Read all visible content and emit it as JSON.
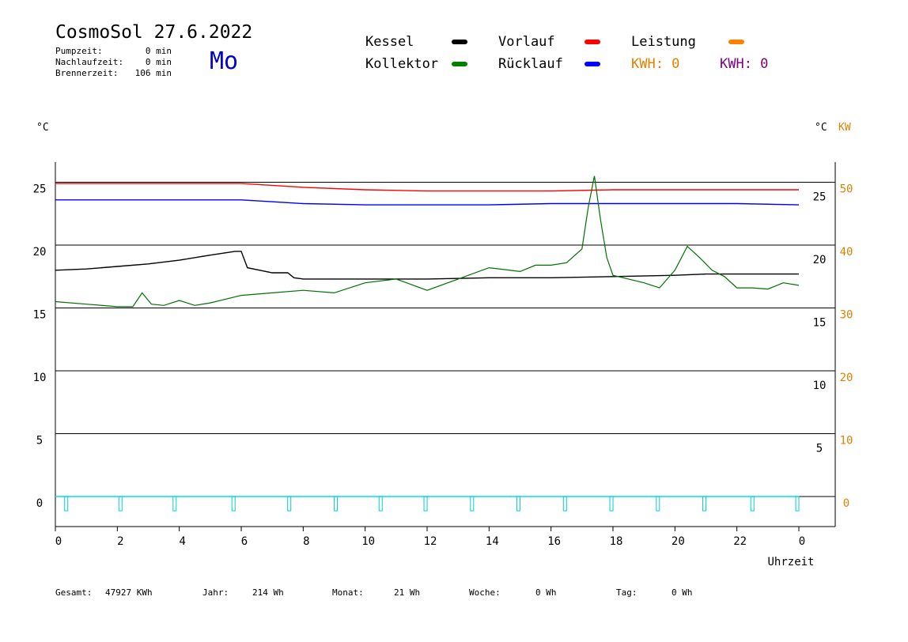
{
  "header": {
    "title": "CosmoSol 27.6.2022",
    "weekday": "Mo",
    "stats": [
      {
        "label": "Pumpzeit:",
        "value": "0 min"
      },
      {
        "label": "Nachlaufzeit:",
        "value": "0 min"
      },
      {
        "label": "Brennerzeit:",
        "value": "106 min"
      }
    ]
  },
  "legend": {
    "items": [
      {
        "label": "Kessel",
        "color": "#000000"
      },
      {
        "label": "Kollektor",
        "color": "#008000"
      },
      {
        "label": "Vorlauf",
        "color": "#ff0000"
      },
      {
        "label": "Rücklauf",
        "color": "#0000ff"
      },
      {
        "label": "Leistung",
        "color": "#ff8000"
      }
    ],
    "kwh": [
      {
        "text": "KWH: 0",
        "color": "#e08000"
      },
      {
        "text": "KWH: 0",
        "color": "#800080"
      }
    ]
  },
  "footer": [
    {
      "label": "Gesamt:",
      "value": "47927 KWh"
    },
    {
      "label": "Jahr:",
      "value": "214 Wh"
    },
    {
      "label": "Monat:",
      "value": "21 Wh"
    },
    {
      "label": "Woche:",
      "value": "0 Wh"
    },
    {
      "label": "Tag:",
      "value": "0 Wh"
    }
  ],
  "chart_data": {
    "type": "line",
    "xlabel": "Uhrzeit",
    "left_unit": "°C",
    "right_unit_temp": "°C",
    "right_unit_power": "KW",
    "x_ticks": [
      "0",
      "2",
      "4",
      "6",
      "8",
      "10",
      "12",
      "14",
      "16",
      "18",
      "20",
      "22",
      "0"
    ],
    "xlim": [
      0,
      24
    ],
    "y_left_ticks": [
      "0",
      "5",
      "10",
      "15",
      "20",
      "25"
    ],
    "y_right_temp_ticks": [
      "5",
      "10",
      "15",
      "20",
      "25"
    ],
    "y_right_power_ticks": [
      "0",
      "10",
      "20",
      "30",
      "40",
      "50"
    ],
    "ylim": [
      -2.5,
      27.5
    ],
    "grid": true,
    "series": [
      {
        "name": "Vorlauf",
        "color": "#ff0000",
        "x": [
          0,
          5.5,
          6,
          8,
          10,
          12,
          14,
          16,
          18,
          20,
          22,
          24
        ],
        "y": [
          24.9,
          24.9,
          24.9,
          24.6,
          24.4,
          24.3,
          24.3,
          24.3,
          24.4,
          24.4,
          24.4,
          24.4
        ]
      },
      {
        "name": "Rücklauf",
        "color": "#0000ff",
        "x": [
          0,
          5.5,
          6,
          8,
          10,
          12,
          14,
          16,
          18,
          20,
          22,
          24
        ],
        "y": [
          23.6,
          23.6,
          23.6,
          23.3,
          23.2,
          23.2,
          23.2,
          23.3,
          23.3,
          23.3,
          23.3,
          23.2
        ]
      },
      {
        "name": "Kessel",
        "color": "#000000",
        "x": [
          0,
          1,
          2,
          3,
          4,
          5,
          5.8,
          6.0,
          6.2,
          7,
          7.5,
          7.7,
          8,
          10,
          12,
          14,
          16,
          18,
          20,
          21,
          22,
          23,
          24
        ],
        "y": [
          18.0,
          18.1,
          18.3,
          18.5,
          18.8,
          19.2,
          19.5,
          19.5,
          18.2,
          17.8,
          17.8,
          17.4,
          17.3,
          17.3,
          17.3,
          17.4,
          17.4,
          17.5,
          17.6,
          17.7,
          17.7,
          17.7,
          17.7
        ]
      },
      {
        "name": "Kollektor",
        "color": "#007000",
        "x": [
          0,
          1,
          2,
          2.5,
          2.8,
          3.1,
          3.5,
          4,
          4.5,
          5,
          6,
          7,
          8,
          9,
          10,
          11,
          12,
          13,
          14,
          15,
          15.5,
          16,
          16.5,
          17,
          17.2,
          17.4,
          17.6,
          17.8,
          18,
          18.5,
          19,
          19.5,
          20,
          20.4,
          20.8,
          21.2,
          21.6,
          22,
          22.5,
          23,
          23.5,
          24
        ],
        "y": [
          15.5,
          15.3,
          15.1,
          15.1,
          16.2,
          15.3,
          15.2,
          15.6,
          15.2,
          15.4,
          16.0,
          16.2,
          16.4,
          16.2,
          17.0,
          17.3,
          16.4,
          17.3,
          18.2,
          17.9,
          18.4,
          18.4,
          18.6,
          19.7,
          23.0,
          25.5,
          22.0,
          19.0,
          17.6,
          17.3,
          17.0,
          16.6,
          18.0,
          19.9,
          19.0,
          18.0,
          17.5,
          16.6,
          16.6,
          16.5,
          17.0,
          16.8
        ]
      },
      {
        "name": "Leistung",
        "color": "#00e0e0",
        "x": [
          0,
          24
        ],
        "y": [
          0,
          0
        ]
      }
    ],
    "pump_pulses_x": [
      0.35,
      2.1,
      3.85,
      5.75,
      7.55,
      9.05,
      10.5,
      11.95,
      13.45,
      14.95,
      16.45,
      17.95,
      19.45,
      20.95,
      22.5,
      23.95
    ]
  }
}
